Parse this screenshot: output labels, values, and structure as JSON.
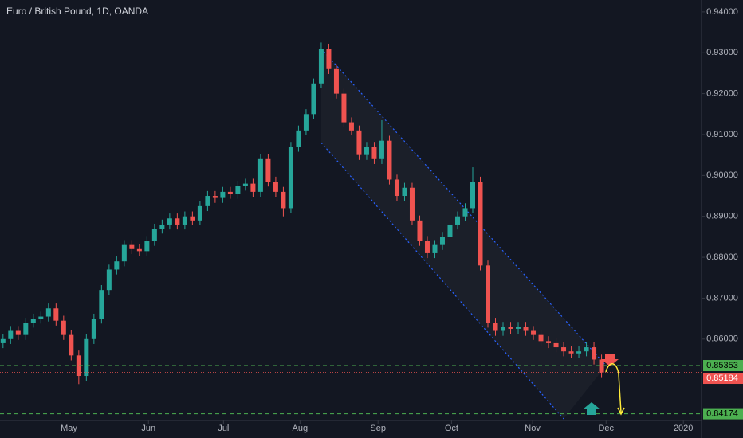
{
  "chart_data": {
    "type": "candlestick",
    "title": "Euro / British Pound, 1D, OANDA",
    "categories": [
      null,
      null,
      null,
      null,
      null,
      null,
      null,
      null,
      null,
      null,
      null,
      null,
      null,
      null,
      null,
      null,
      null,
      null,
      null,
      null,
      null,
      null,
      null,
      null,
      null,
      null,
      null,
      null,
      null,
      null,
      null,
      null,
      null,
      null,
      null,
      null,
      null,
      null,
      null,
      null,
      null,
      null,
      null,
      null,
      null,
      null,
      null,
      null,
      null,
      null,
      null,
      null,
      null,
      null,
      null,
      null,
      null,
      null,
      null,
      null,
      null,
      null,
      null,
      null,
      null,
      null,
      null,
      null,
      null,
      null,
      null,
      null,
      null,
      null,
      null,
      null,
      null,
      null,
      null,
      null
    ],
    "open": [
      0.859,
      0.86,
      0.862,
      0.861,
      0.864,
      0.865,
      0.8655,
      0.8675,
      0.8645,
      0.861,
      0.856,
      0.851,
      0.86,
      0.865,
      0.872,
      0.877,
      0.879,
      0.883,
      0.882,
      0.8815,
      0.884,
      0.887,
      0.888,
      0.8895,
      0.888,
      0.89,
      0.889,
      0.8925,
      0.895,
      0.8945,
      0.896,
      0.8955,
      0.8975,
      0.898,
      0.896,
      0.904,
      0.8985,
      0.896,
      0.892,
      0.907,
      0.911,
      0.915,
      0.9225,
      0.931,
      0.926,
      0.92,
      0.913,
      0.911,
      0.905,
      0.907,
      0.904,
      0.9085,
      0.899,
      0.895,
      0.897,
      0.889,
      0.884,
      0.881,
      0.883,
      0.885,
      0.888,
      0.89,
      0.892,
      0.8985,
      0.878,
      0.864,
      0.862,
      0.863,
      0.8625,
      0.863,
      0.862,
      0.861,
      0.8595,
      0.859,
      0.858,
      0.857,
      0.8565,
      0.857,
      0.858,
      0.855
    ],
    "high": [
      0.8612,
      0.8632,
      0.8632,
      0.8652,
      0.8662,
      0.8667,
      0.8687,
      0.8687,
      0.8657,
      0.8622,
      0.8572,
      0.8612,
      0.8662,
      0.8732,
      0.8782,
      0.8802,
      0.8842,
      0.8842,
      0.8832,
      0.8852,
      0.8882,
      0.8892,
      0.8907,
      0.8907,
      0.8912,
      0.8912,
      0.8937,
      0.8962,
      0.8962,
      0.8972,
      0.8972,
      0.8987,
      0.8992,
      0.8992,
      0.9052,
      0.9052,
      0.8997,
      0.8972,
      0.9082,
      0.9122,
      0.9162,
      0.9237,
      0.9325,
      0.9322,
      0.9272,
      0.9212,
      0.9142,
      0.9122,
      0.9082,
      0.9082,
      0.9135,
      0.9097,
      0.9002,
      0.8982,
      0.8982,
      0.8902,
      0.8852,
      0.8842,
      0.8862,
      0.8892,
      0.8912,
      0.8932,
      0.902,
      0.8997,
      0.8792,
      0.8652,
      0.8642,
      0.8642,
      0.8642,
      0.8642,
      0.8632,
      0.8622,
      0.8607,
      0.8602,
      0.8592,
      0.8582,
      0.8582,
      0.8592,
      0.8592,
      0.8562
    ],
    "low": [
      0.8578,
      0.8588,
      0.8598,
      0.8598,
      0.8628,
      0.8638,
      0.8643,
      0.8633,
      0.8598,
      0.8548,
      0.849,
      0.8498,
      0.8588,
      0.8638,
      0.8708,
      0.8758,
      0.8778,
      0.8808,
      0.8803,
      0.8803,
      0.8828,
      0.8858,
      0.8868,
      0.8868,
      0.8868,
      0.8878,
      0.8878,
      0.8913,
      0.8933,
      0.8933,
      0.8943,
      0.8943,
      0.8963,
      0.8948,
      0.8948,
      0.8973,
      0.8948,
      0.89,
      0.8908,
      0.9058,
      0.9098,
      0.9138,
      0.9213,
      0.9248,
      0.9188,
      0.9118,
      0.9098,
      0.9038,
      0.9038,
      0.9028,
      0.9028,
      0.8978,
      0.8938,
      0.8938,
      0.8878,
      0.8828,
      0.8798,
      0.8798,
      0.8818,
      0.8838,
      0.8868,
      0.8888,
      0.8908,
      0.8768,
      0.8628,
      0.8608,
      0.8608,
      0.8613,
      0.8613,
      0.8608,
      0.8598,
      0.8583,
      0.8578,
      0.8568,
      0.8558,
      0.8553,
      0.8553,
      0.8558,
      0.8538,
      0.8505
    ],
    "close": [
      0.86,
      0.862,
      0.861,
      0.864,
      0.865,
      0.8655,
      0.8675,
      0.8645,
      0.861,
      0.856,
      0.851,
      0.86,
      0.865,
      0.872,
      0.877,
      0.879,
      0.883,
      0.882,
      0.8815,
      0.884,
      0.887,
      0.888,
      0.8895,
      0.888,
      0.89,
      0.889,
      0.8925,
      0.895,
      0.8945,
      0.896,
      0.8955,
      0.8975,
      0.898,
      0.896,
      0.904,
      0.8985,
      0.896,
      0.892,
      0.907,
      0.911,
      0.915,
      0.9225,
      0.931,
      0.926,
      0.92,
      0.913,
      0.911,
      0.905,
      0.907,
      0.904,
      0.9085,
      0.899,
      0.895,
      0.897,
      0.889,
      0.884,
      0.881,
      0.883,
      0.885,
      0.888,
      0.89,
      0.892,
      0.8985,
      0.878,
      0.864,
      0.862,
      0.863,
      0.8625,
      0.863,
      0.862,
      0.861,
      0.8595,
      0.859,
      0.858,
      0.857,
      0.8565,
      0.857,
      0.858,
      0.855,
      0.85184
    ],
    "up_color": "#26a69a",
    "down_color": "#ef5350",
    "xlim": [
      -0.4,
      92.2
    ],
    "xticks": [
      {
        "value": 8.7,
        "label": "May"
      },
      {
        "value": 19.2,
        "label": "Jun"
      },
      {
        "value": 29.1,
        "label": "Jul"
      },
      {
        "value": 39.2,
        "label": "Aug"
      },
      {
        "value": 49.5,
        "label": "Sep"
      },
      {
        "value": 59.2,
        "label": "Oct"
      },
      {
        "value": 69.9,
        "label": "Nov"
      },
      {
        "value": 79.6,
        "label": "Dec"
      },
      {
        "value": 89.8,
        "label": "2020"
      }
    ],
    "ylim": [
      0.8401,
      0.9429
    ],
    "yticks": [
      {
        "value": 0.94,
        "label": "0.94000"
      },
      {
        "value": 0.93,
        "label": "0.93000"
      },
      {
        "value": 0.92,
        "label": "0.92000"
      },
      {
        "value": 0.91,
        "label": "0.91000"
      },
      {
        "value": 0.9,
        "label": "0.90000"
      },
      {
        "value": 0.89,
        "label": "0.89000"
      },
      {
        "value": 0.88,
        "label": "0.88000"
      },
      {
        "value": 0.87,
        "label": "0.87000"
      },
      {
        "value": 0.86,
        "label": "0.86000"
      }
    ],
    "levels": [
      {
        "value": 0.85353,
        "label": "0.85353",
        "color": "#4caf50",
        "style": "dashed"
      },
      {
        "value": 0.85184,
        "label": "0.85184",
        "color": "#ef5350",
        "style": "dotted"
      },
      {
        "value": 0.84174,
        "label": "0.84174",
        "color": "#4caf50",
        "style": "dashed"
      }
    ],
    "channel": {
      "color": "#2962ff",
      "upper": {
        "x": [
          42,
          79.6
        ],
        "y": [
          0.931,
          0.8535
        ]
      },
      "lower": {
        "x": [
          42,
          74
        ],
        "y": [
          0.908,
          0.8405
        ]
      }
    }
  }
}
